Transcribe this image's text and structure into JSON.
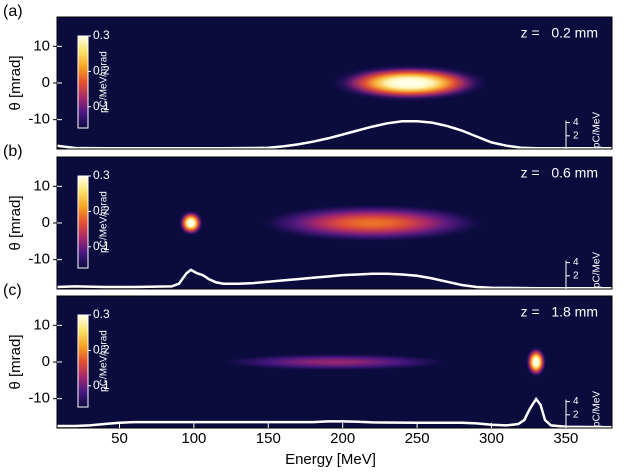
{
  "chart_data": [
    {
      "type": "heatmap",
      "panel_label": "(a)",
      "annotation": "z =   0.2 mm",
      "ylabel": "θ [mrad]",
      "xlim": [
        8,
        381
      ],
      "ylim": [
        -18,
        18
      ],
      "yticks": [
        -10,
        0,
        10
      ],
      "y2lim": [
        0,
        20
      ],
      "y2ticks": [
        2,
        4
      ],
      "y2label": "pC/MeV",
      "colorbar": {
        "label": "pC/MeV/mrad",
        "lim": [
          0.04,
          0.3
        ],
        "ticks": [
          0.1,
          0.2,
          0.3
        ]
      },
      "colormap": [
        "#0b0b3e",
        "#4a1884",
        "#a8286a",
        "#e5522e",
        "#f7a323",
        "#fbe36a",
        "#ffffe8"
      ],
      "blobs": [
        {
          "x": 245,
          "y": 0,
          "x_width": 38,
          "y_width": 3.6,
          "value": 0.3
        }
      ],
      "x": [
        8,
        20,
        40,
        60,
        80,
        100,
        120,
        140,
        150,
        160,
        170,
        180,
        190,
        200,
        210,
        220,
        230,
        240,
        250,
        260,
        270,
        280,
        290,
        300,
        310,
        320,
        330,
        350,
        381
      ],
      "series": [
        {
          "color": "#ffffff",
          "axis": "y2",
          "values": [
            0.5,
            0.15,
            0.1,
            0.1,
            0.1,
            0.1,
            0.1,
            0.15,
            0.2,
            0.4,
            0.7,
            1.1,
            1.6,
            2.2,
            2.8,
            3.4,
            3.9,
            4.2,
            4.2,
            4.0,
            3.5,
            2.8,
            1.9,
            1.0,
            0.5,
            0.2,
            0.1,
            0.1,
            0.1
          ]
        }
      ]
    },
    {
      "type": "heatmap",
      "panel_label": "(b)",
      "annotation": "z =   0.6 mm",
      "ylabel": "θ [mrad]",
      "xlim": [
        8,
        381
      ],
      "ylim": [
        -18,
        18
      ],
      "yticks": [
        -10,
        0,
        10
      ],
      "y2lim": [
        0,
        20
      ],
      "y2ticks": [
        2,
        4
      ],
      "y2label": "pC/MeV",
      "colorbar": {
        "label": "pC/MeV/mrad",
        "lim": [
          0.04,
          0.3
        ],
        "ticks": [
          0.1,
          0.2,
          0.3
        ]
      },
      "colormap": [
        "#0b0b3e",
        "#4a1884",
        "#a8286a",
        "#e5522e",
        "#f7a323",
        "#fbe36a",
        "#ffffe8"
      ],
      "blobs": [
        {
          "x": 220,
          "y": 0,
          "x_width": 62,
          "y_width": 4.2,
          "value": 0.15
        },
        {
          "x": 98,
          "y": 0,
          "x_width": 6,
          "y_width": 2.5,
          "value": 0.3
        }
      ],
      "x": [
        8,
        20,
        40,
        60,
        85,
        90,
        95,
        98,
        102,
        106,
        110,
        115,
        120,
        130,
        140,
        150,
        160,
        170,
        180,
        190,
        200,
        210,
        220,
        230,
        240,
        250,
        260,
        270,
        280,
        290,
        300,
        330,
        381
      ],
      "series": [
        {
          "color": "#ffffff",
          "axis": "y2",
          "values": [
            0.3,
            0.4,
            0.3,
            0.3,
            0.4,
            0.8,
            2.4,
            2.9,
            2.4,
            2.1,
            1.5,
            1.0,
            0.8,
            0.8,
            0.9,
            1.1,
            1.3,
            1.5,
            1.7,
            1.9,
            2.1,
            2.2,
            2.3,
            2.3,
            2.2,
            2.0,
            1.6,
            1.1,
            0.6,
            0.3,
            0.2,
            0.1,
            0.1
          ]
        }
      ]
    },
    {
      "type": "heatmap",
      "panel_label": "(c)",
      "annotation": "z =   1.8 mm",
      "ylabel": "θ [mrad]",
      "xlabel": "Energy [MeV]",
      "xlim": [
        8,
        381
      ],
      "ylim": [
        -18,
        18
      ],
      "xticks": [
        50,
        100,
        150,
        200,
        250,
        300,
        350
      ],
      "yticks": [
        -10,
        0,
        10
      ],
      "y2lim": [
        0,
        20
      ],
      "y2ticks": [
        2,
        4
      ],
      "y2label": "pC/MeV",
      "colorbar": {
        "label": "pC/MeV/mrad",
        "lim": [
          0.04,
          0.3
        ],
        "ticks": [
          0.1,
          0.2,
          0.3
        ]
      },
      "colormap": [
        "#0b0b3e",
        "#4a1884",
        "#a8286a",
        "#e5522e",
        "#f7a323",
        "#fbe36a",
        "#ffffe8"
      ],
      "blobs": [
        {
          "x": 195,
          "y": 0,
          "x_width": 75,
          "y_width": 2.2,
          "value": 0.08
        },
        {
          "x": 330,
          "y": 0,
          "x_width": 5,
          "y_width": 3,
          "value": 0.3
        }
      ],
      "x": [
        8,
        20,
        30,
        40,
        50,
        60,
        100,
        150,
        180,
        190,
        200,
        210,
        220,
        250,
        280,
        290,
        300,
        310,
        318,
        322,
        326,
        330,
        333,
        336,
        340,
        350,
        381
      ],
      "series": [
        {
          "color": "#ffffff",
          "axis": "y2",
          "values": [
            0.3,
            0.3,
            0.4,
            0.6,
            0.8,
            0.9,
            0.9,
            0.9,
            0.9,
            1.0,
            1.0,
            0.95,
            0.85,
            0.8,
            0.8,
            0.7,
            0.5,
            0.4,
            0.6,
            1.2,
            3.0,
            4.4,
            3.5,
            1.2,
            0.4,
            0.2,
            0.1
          ]
        }
      ]
    }
  ]
}
